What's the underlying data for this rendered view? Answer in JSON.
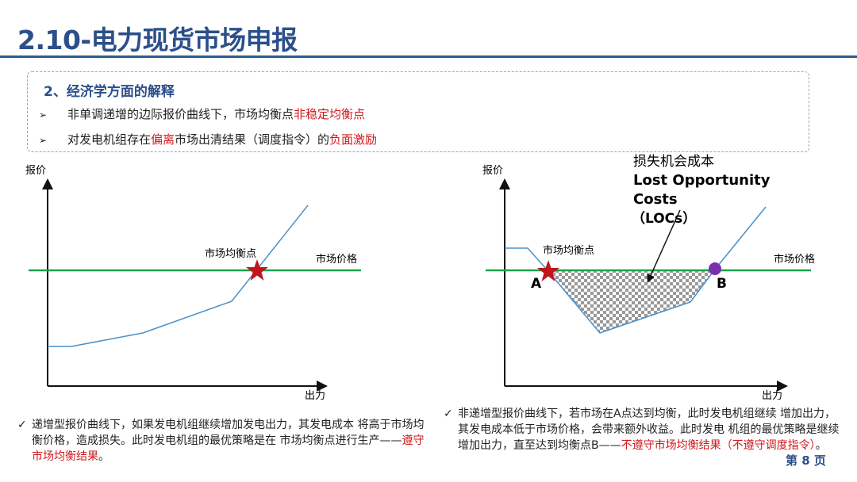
{
  "title": "2.10-电力现货市场申报",
  "box": {
    "heading": "2、经济学方面的解释",
    "bullets": [
      {
        "a": "非单调递增的边际报价曲线下，市场均衡点",
        "b": "非稳定均衡点",
        "c": ""
      },
      {
        "a": "对发电机组存在",
        "b": "偏离",
        "c": "市场出清结果（调度指令）的",
        "d": "负面激励"
      }
    ]
  },
  "left_chart": {
    "ylabel": "报价",
    "xlabel": "出力",
    "equilibrium_label": "市场均衡点",
    "price_label": "市场价格"
  },
  "right_chart": {
    "ylabel": "报价",
    "xlabel": "出力",
    "equilibrium_label": "市场均衡点",
    "price_label": "市场价格",
    "point_a": "A",
    "point_b": "B",
    "loc_cn": "损失机会成本",
    "loc_en1": "Lost Opportunity",
    "loc_en2": "Costs",
    "loc_abbr": "（LOCs）"
  },
  "left_note": {
    "text": "递增型报价曲线下，如果发电机组继续增加发电出力，其发电成本 将高于市场均衡价格，造成损失。此时发电机组的最优策略是在 市场均衡点进行生产——",
    "red": "遵守市场均衡结果",
    "end": "。"
  },
  "right_note": {
    "text": "非递增型报价曲线下，若市场在A点达到均衡，此时发电机组继续 增加出力，其发电成本低于市场价格，会带来额外收益。此时发电 机组的最优策略是继续增加出力，直至达到均衡点B——",
    "red": "不遵守市场均衡结果（不遵守调度指令）",
    "end": "。"
  },
  "page_number": "第 8 页",
  "colors": {
    "accent": "#2b4f8a",
    "price_line": "#1aa34a",
    "curve": "#4a90c8",
    "star": "#c0151c",
    "point_b": "#7b2fae",
    "red_text": "#d0181e"
  }
}
